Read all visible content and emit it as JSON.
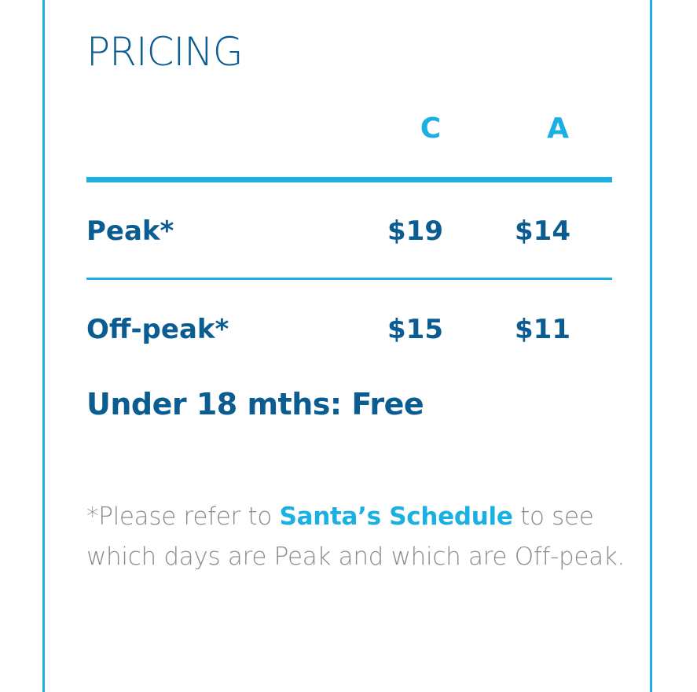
{
  "pricing": {
    "title": "PRICING",
    "columns": {
      "c": "C",
      "a": "A"
    },
    "rows": [
      {
        "label": "Peak*",
        "c": "$19",
        "a": "$14"
      },
      {
        "label": "Off-peak*",
        "c": "$15",
        "a": "$11"
      }
    ],
    "free_note": "Under 18 mths: Free",
    "footnote": {
      "prefix": "*Please refer to ",
      "link_text": "Santa’s Schedule",
      "suffix": " to see which days are Peak and which are Off-peak."
    }
  },
  "colors": {
    "accent": "#1ab0e2",
    "primary": "#0a5c91",
    "muted": "#8a8a8a"
  }
}
